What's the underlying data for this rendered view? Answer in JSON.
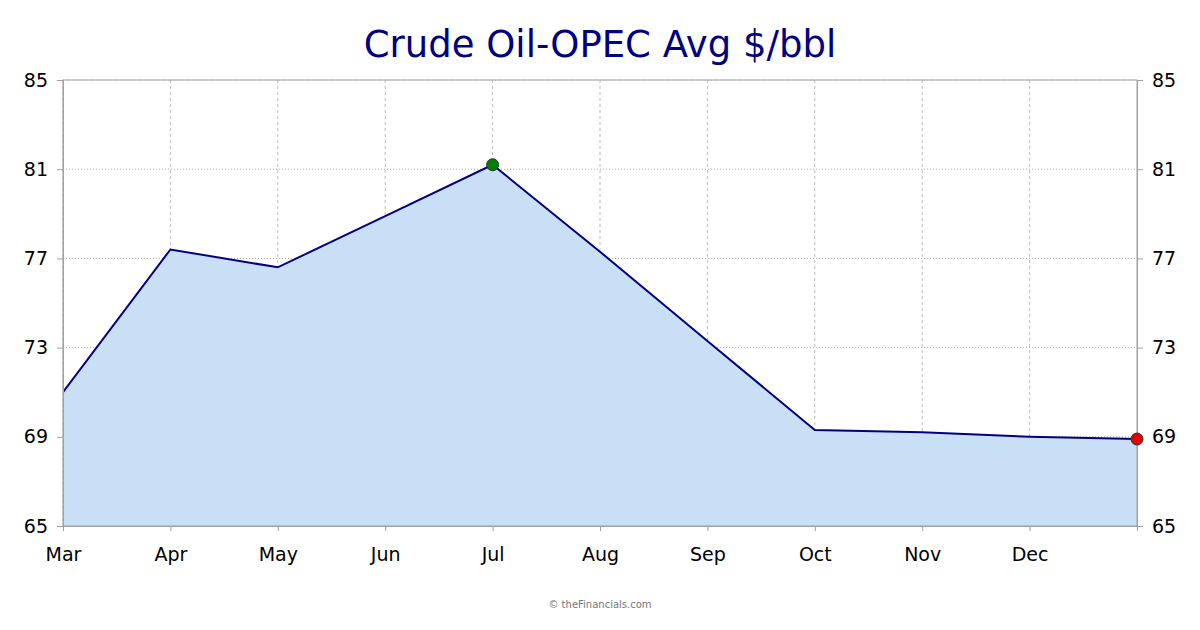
{
  "chart_data": {
    "type": "line",
    "title": "Crude Oil-OPEC Avg $/bbl",
    "categories": [
      "Mar",
      "Apr",
      "May",
      "Jun",
      "Jul",
      "Aug",
      "Sep",
      "Oct",
      "Nov",
      "Dec",
      null
    ],
    "values": [
      71.0,
      77.4,
      76.6,
      78.9,
      81.2,
      77.3,
      73.3,
      69.3,
      69.2,
      69.0,
      68.9
    ],
    "color": "#000080",
    "ylim": [
      65,
      85
    ],
    "yticks": [
      65,
      69,
      73,
      77,
      81,
      85
    ],
    "grid": true,
    "marker": "extremes",
    "annotations": [
      "© theFinancials.com"
    ]
  }
}
